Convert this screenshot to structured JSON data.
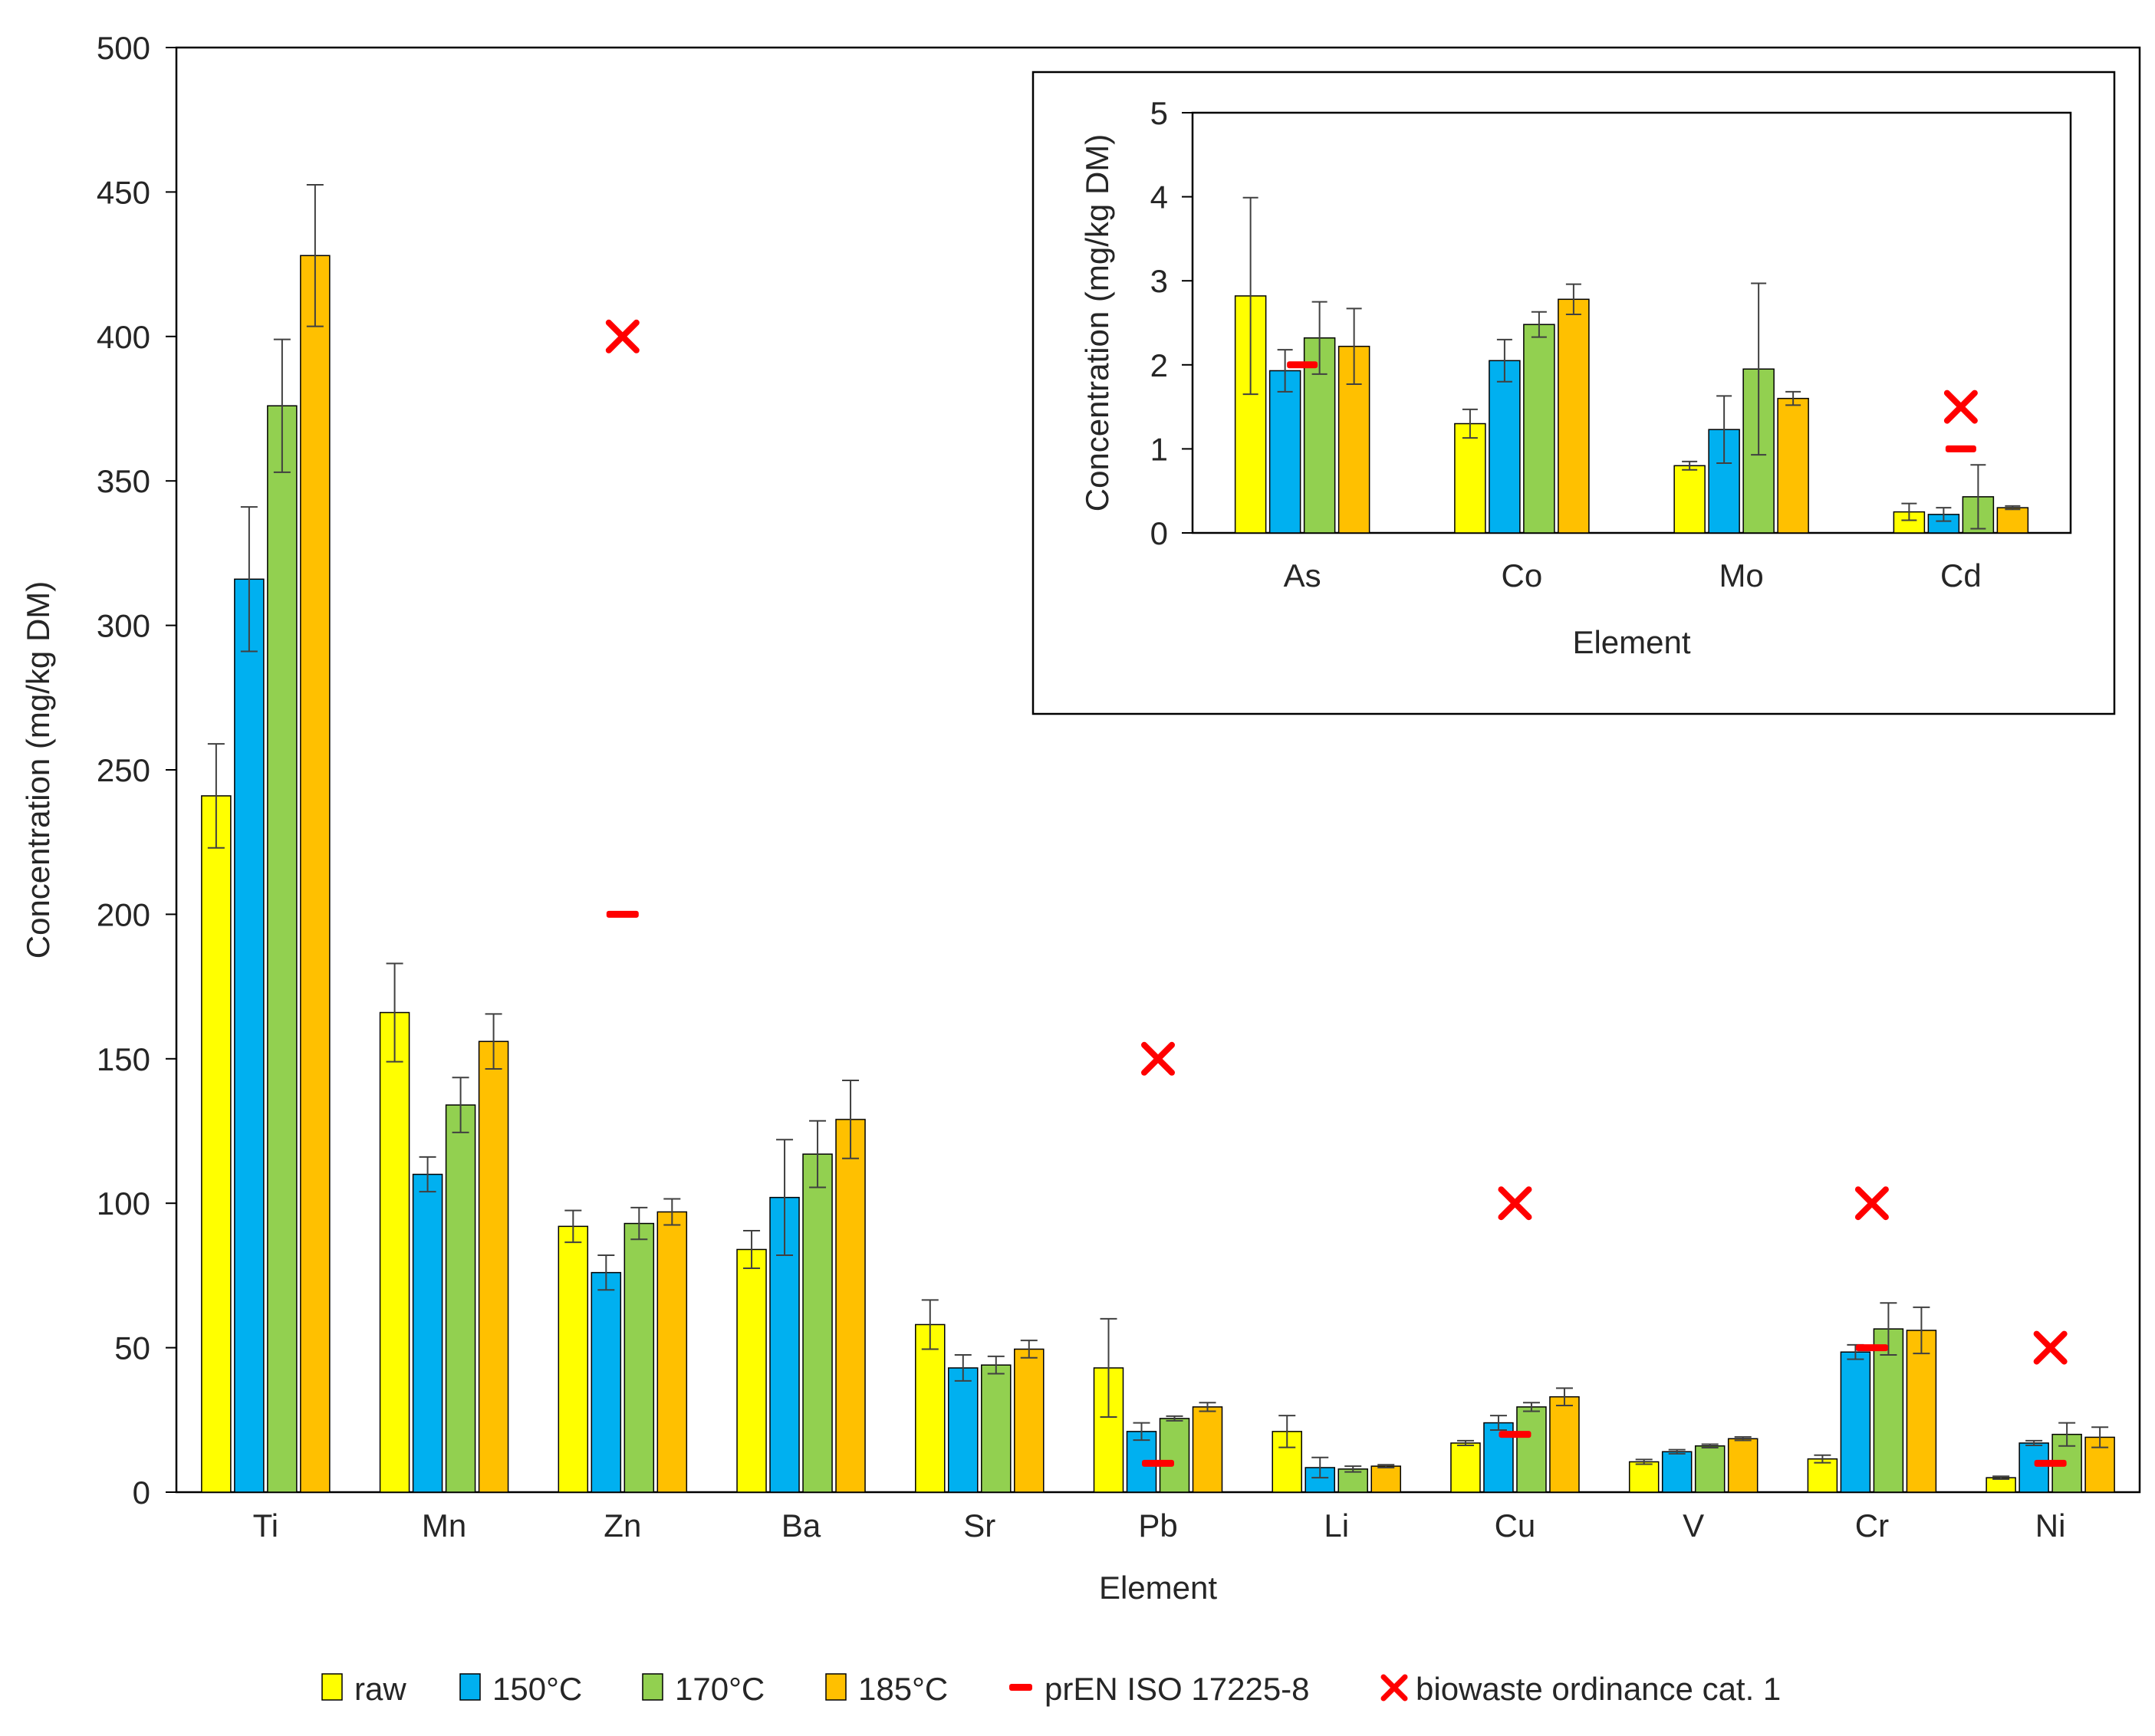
{
  "chart_data": [
    {
      "id": "main",
      "type": "bar",
      "title": "",
      "xlabel": "Element",
      "ylabel": "Concentration (mg/kg DM)",
      "ylim": [
        0,
        500
      ],
      "yticks": [
        0,
        50,
        100,
        150,
        200,
        250,
        300,
        350,
        400,
        450,
        500
      ],
      "grid": false,
      "categories": [
        "Ti",
        "Mn",
        "Zn",
        "Ba",
        "Sr",
        "Pb",
        "Li",
        "Cu",
        "V",
        "Cr",
        "Ni"
      ],
      "series": [
        {
          "name": "raw",
          "color": "#FFFF00",
          "values": [
            241,
            166,
            92,
            84,
            58,
            43,
            21,
            17,
            10.5,
            11.5,
            5
          ],
          "errors": [
            18,
            17,
            5.5,
            6.5,
            8.5,
            17,
            5.5,
            0.8,
            0.8,
            1.3,
            0.5
          ]
        },
        {
          "name": "150°C",
          "color": "#00B0F0",
          "values": [
            316,
            110,
            76,
            102,
            43,
            21,
            8.5,
            24,
            14,
            48.5,
            17
          ],
          "errors": [
            25,
            6,
            6,
            20,
            4.5,
            3,
            3.5,
            2.5,
            0.7,
            2.5,
            0.8
          ]
        },
        {
          "name": "170°C",
          "color": "#92D050",
          "values": [
            376,
            134,
            93,
            117,
            44,
            25.5,
            8,
            29.5,
            16,
            56.5,
            20
          ],
          "errors": [
            23,
            9.5,
            5.5,
            11.5,
            3,
            0.8,
            1,
            1.5,
            0.6,
            9,
            4
          ]
        },
        {
          "name": "185°C",
          "color": "#FFC000",
          "values": [
            428,
            156,
            97,
            129,
            49.5,
            29.5,
            9,
            33,
            18.5,
            56,
            19
          ],
          "errors": [
            24.5,
            9.5,
            4.5,
            13.5,
            3,
            1.5,
            0.5,
            3,
            0.6,
            8,
            3.5
          ]
        }
      ],
      "limits": {
        "name": "prEN ISO 17225-8",
        "color": "#FF0000",
        "points": [
          {
            "category": "Zn",
            "value": 200
          },
          {
            "category": "Pb",
            "value": 10
          },
          {
            "category": "Cu",
            "value": 20
          },
          {
            "category": "Cr",
            "value": 50
          },
          {
            "category": "Ni",
            "value": 10
          }
        ]
      },
      "ordinance": {
        "name": "biowaste ordinance cat. 1",
        "color": "#FF0000",
        "points": [
          {
            "category": "Zn",
            "value": 400
          },
          {
            "category": "Pb",
            "value": 150
          },
          {
            "category": "Cu",
            "value": 100
          },
          {
            "category": "Cr",
            "value": 100
          },
          {
            "category": "Ni",
            "value": 50
          }
        ]
      },
      "legend": "bottom"
    },
    {
      "id": "inset",
      "type": "bar",
      "title": "",
      "xlabel": "Element",
      "ylabel": "Concentration (mg/kg DM)",
      "ylim": [
        0,
        5
      ],
      "yticks": [
        0,
        1,
        2,
        3,
        4,
        5
      ],
      "grid": false,
      "categories": [
        "As",
        "Co",
        "Mo",
        "Cd"
      ],
      "series": [
        {
          "name": "raw",
          "color": "#FFFF00",
          "values": [
            2.82,
            1.3,
            0.8,
            0.25
          ],
          "errors": [
            1.17,
            0.17,
            0.05,
            0.1
          ]
        },
        {
          "name": "150°C",
          "color": "#00B0F0",
          "values": [
            1.93,
            2.05,
            1.23,
            0.22
          ],
          "errors": [
            0.25,
            0.25,
            0.4,
            0.08
          ]
        },
        {
          "name": "170°C",
          "color": "#92D050",
          "values": [
            2.32,
            2.48,
            1.95,
            0.43
          ],
          "errors": [
            0.43,
            0.15,
            1.02,
            0.38
          ]
        },
        {
          "name": "185°C",
          "color": "#FFC000",
          "values": [
            2.22,
            2.78,
            1.6,
            0.3
          ],
          "errors": [
            0.45,
            0.18,
            0.08,
            0.02
          ]
        }
      ],
      "limits": {
        "name": "prEN ISO 17225-8",
        "color": "#FF0000",
        "points": [
          {
            "category": "As",
            "value": 2
          },
          {
            "category": "Cd",
            "value": 1
          }
        ]
      },
      "ordinance": {
        "name": "biowaste ordinance cat. 1",
        "color": "#FF0000",
        "points": [
          {
            "category": "Cd",
            "value": 1.5
          }
        ]
      },
      "legend": "none"
    }
  ]
}
